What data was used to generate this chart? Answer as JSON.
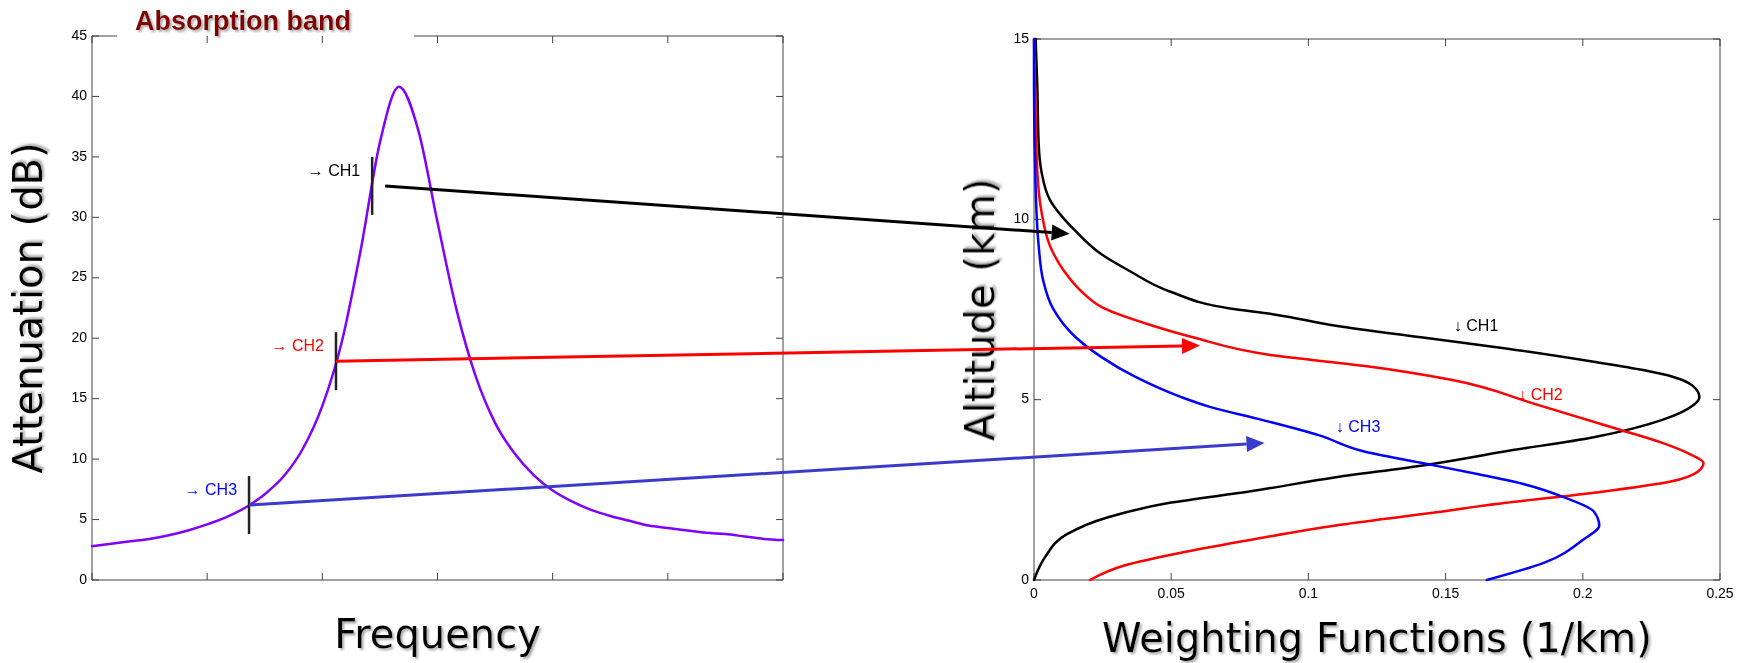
{
  "chart_data": [
    {
      "type": "line",
      "title": "Absorption band",
      "xlabel": "Frequency",
      "ylabel": "Attenuation (dB)",
      "categories": [
        null,
        null,
        null,
        null,
        null,
        null,
        null,
        null,
        null,
        null,
        null,
        null,
        null,
        null,
        null,
        null,
        null,
        null,
        null,
        null,
        null,
        null,
        null,
        null,
        null,
        null,
        null,
        null,
        null,
        null,
        null,
        null,
        null,
        null,
        null,
        null,
        null
      ],
      "series": [
        {
          "color": "#7f00ff",
          "values": [
            2.8,
            3.0,
            3.2,
            3.4,
            3.7,
            4.1,
            4.6,
            5.2,
            6.0,
            7.1,
            8.6,
            10.9,
            14.4,
            19.6,
            27.3,
            36.2,
            40.8,
            37.2,
            29.6,
            22.3,
            16.8,
            13.0,
            10.5,
            8.7,
            7.4,
            6.5,
            5.8,
            5.3,
            4.9,
            4.5,
            4.3,
            4.1,
            3.9,
            3.8,
            3.6,
            3.4,
            3.3
          ]
        }
      ],
      "ylim": [
        0,
        45
      ],
      "yticks": [
        0,
        5,
        10,
        15,
        20,
        25,
        30,
        35,
        40,
        45
      ],
      "tick_labels": "y",
      "annotations": [
        "→ CH1",
        "→ CH2",
        "→ CH3"
      ]
    },
    {
      "type": "line",
      "xlabel": "Weighting Functions (1/km)",
      "ylabel": "Altitude (km)",
      "series": [
        {
          "color": "#000000",
          "x": [
            0,
            0.004,
            0.012,
            0.027,
            0.0495,
            0.079,
            0.11,
            0.141,
            0.172,
            0.204,
            0.229,
            0.24,
            0.2425,
            0.24,
            0.233,
            0.222,
            0.204,
            0.172,
            0.141,
            0.11,
            0.087,
            0.0714,
            0.0495,
            0.035,
            0.0246,
            0.0152,
            0.0058,
            0.0027,
            0.0017,
            0.0012,
            0.0006
          ],
          "values": [
            0,
            0.63,
            1.27,
            1.74,
            2.14,
            2.46,
            2.85,
            3.17,
            3.57,
            3.96,
            4.44,
            4.83,
            5.07,
            5.39,
            5.63,
            5.82,
            6.05,
            6.42,
            6.73,
            7.05,
            7.37,
            7.53,
            8.0,
            8.56,
            9.03,
            9.67,
            10.54,
            11.33,
            12.1,
            13.7,
            15
          ]
        },
        {
          "color": "#ff0000",
          "x": [
            0.0204,
            0.0329,
            0.0558,
            0.0787,
            0.11,
            0.141,
            0.172,
            0.204,
            0.232,
            0.242,
            0.244,
            0.239,
            0.229,
            0.212,
            0.183,
            0.152,
            0.12,
            0.087,
            0.0579,
            0.0433,
            0.0256,
            0.0173,
            0.011,
            0.0058,
            0.0027,
            0.0012,
            0.0004,
            0
          ],
          "values": [
            0,
            0.4,
            0.79,
            1.11,
            1.51,
            1.82,
            2.14,
            2.42,
            2.73,
            3.01,
            3.25,
            3.49,
            3.8,
            4.2,
            4.87,
            5.55,
            5.94,
            6.23,
            6.73,
            7.05,
            7.53,
            8.0,
            8.56,
            9.27,
            10.22,
            11.33,
            13.7,
            15
          ]
        },
        {
          "color": "#0000ff",
          "x": [
            0.165,
            0.186,
            0.2,
            0.206,
            0.204,
            0.193,
            0.179,
            0.162,
            0.141,
            0.12,
            0.104,
            0.083,
            0.0641,
            0.0537,
            0.037,
            0.0246,
            0.0152,
            0.0069,
            0.0033,
            0.0017,
            0.0006,
            0,
            0
          ],
          "values": [
            0,
            0.48,
            1.11,
            1.51,
            1.9,
            2.3,
            2.65,
            2.93,
            3.25,
            3.57,
            4.01,
            4.44,
            4.8,
            5.07,
            5.63,
            6.18,
            6.73,
            7.53,
            8.32,
            9.27,
            10.85,
            13.7,
            15
          ]
        }
      ],
      "xlim": [
        0,
        0.25
      ],
      "xticks": [
        0,
        0.05,
        0.1,
        0.15,
        0.2,
        0.25
      ],
      "ylim": [
        0,
        15
      ],
      "yticks": [
        0,
        5,
        10,
        15
      ],
      "annotations": [
        "↓ CH1",
        "↓ CH2",
        "↓ CH3"
      ]
    }
  ]
}
